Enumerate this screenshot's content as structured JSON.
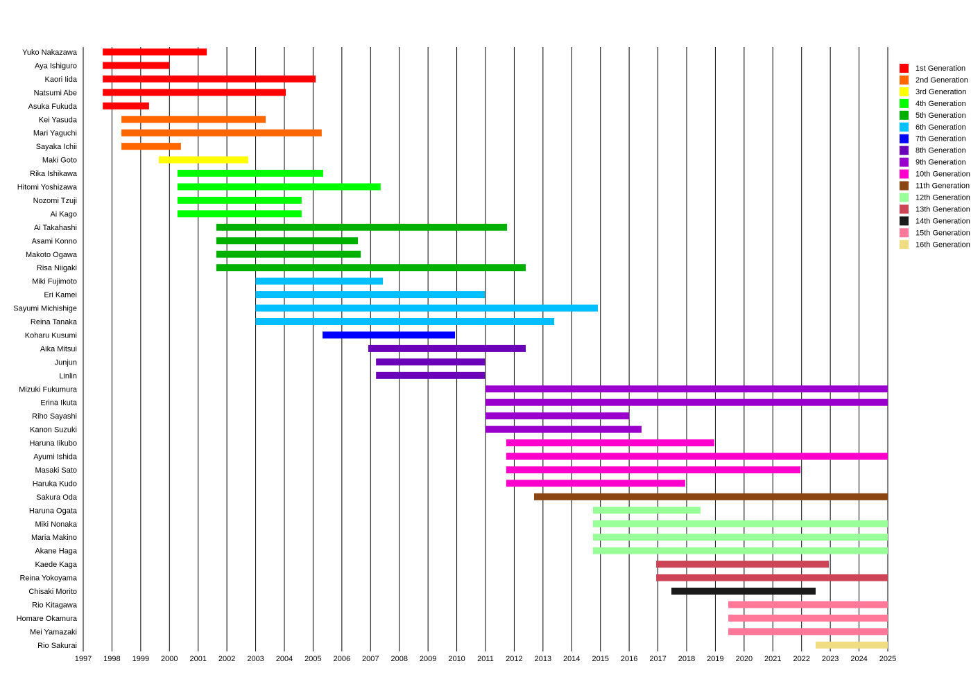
{
  "chart_data": {
    "type": "timeline",
    "title": "",
    "xlabel": "",
    "ylabel": "",
    "xlim": [
      1997,
      2025
    ],
    "x_ticks": [
      1997,
      1998,
      1999,
      2000,
      2001,
      2002,
      2003,
      2004,
      2005,
      2006,
      2007,
      2008,
      2009,
      2010,
      2011,
      2012,
      2013,
      2014,
      2015,
      2016,
      2017,
      2018,
      2019,
      2020,
      2021,
      2022,
      2023,
      2024,
      2025
    ],
    "grid": "vertical",
    "legend_position": "right",
    "generations": [
      {
        "name": "1st Generation",
        "color": "#ff0000"
      },
      {
        "name": "2nd Generation",
        "color": "#ff6600"
      },
      {
        "name": "3rd Generation",
        "color": "#ffff00"
      },
      {
        "name": "4th Generation",
        "color": "#00ff00"
      },
      {
        "name": "5th Generation",
        "color": "#00b000"
      },
      {
        "name": "6th Generation",
        "color": "#00bfff"
      },
      {
        "name": "7th Generation",
        "color": "#0000ff"
      },
      {
        "name": "8th Generation",
        "color": "#6a00b8"
      },
      {
        "name": "9th Generation",
        "color": "#9900cc"
      },
      {
        "name": "10th Generation",
        "color": "#ff00cc"
      },
      {
        "name": "11th Generation",
        "color": "#8b4513"
      },
      {
        "name": "12th Generation",
        "color": "#99ff99"
      },
      {
        "name": "13th Generation",
        "color": "#cc4455"
      },
      {
        "name": "14th Generation",
        "color": "#1a1a1a"
      },
      {
        "name": "15th Generation",
        "color": "#ff7799"
      },
      {
        "name": "16th Generation",
        "color": "#f0dc82"
      }
    ],
    "members": [
      {
        "name": "Yuko Nakazawa",
        "gen": 0,
        "start": 1997.68,
        "end": 2001.3
      },
      {
        "name": "Aya Ishiguro",
        "gen": 0,
        "start": 1997.68,
        "end": 2000.0
      },
      {
        "name": "Kaori Iida",
        "gen": 0,
        "start": 1997.68,
        "end": 2005.09
      },
      {
        "name": "Natsumi Abe",
        "gen": 0,
        "start": 1997.68,
        "end": 2004.05
      },
      {
        "name": "Asuka Fukuda",
        "gen": 0,
        "start": 1997.68,
        "end": 1999.29
      },
      {
        "name": "Kei Yasuda",
        "gen": 1,
        "start": 1998.33,
        "end": 2003.35
      },
      {
        "name": "Mari Yaguchi",
        "gen": 1,
        "start": 1998.33,
        "end": 2005.3
      },
      {
        "name": "Sayaka Ichii",
        "gen": 1,
        "start": 1998.33,
        "end": 2000.4
      },
      {
        "name": "Maki Goto",
        "gen": 2,
        "start": 1999.63,
        "end": 2002.74
      },
      {
        "name": "Rika Ishikawa",
        "gen": 3,
        "start": 2000.28,
        "end": 2005.35
      },
      {
        "name": "Hitomi Yoshizawa",
        "gen": 3,
        "start": 2000.28,
        "end": 2007.35
      },
      {
        "name": "Nozomi Tzuji",
        "gen": 3,
        "start": 2000.28,
        "end": 2004.6
      },
      {
        "name": "Ai Kago",
        "gen": 3,
        "start": 2000.28,
        "end": 2004.6
      },
      {
        "name": "Ai Takahashi",
        "gen": 4,
        "start": 2001.63,
        "end": 2011.75
      },
      {
        "name": "Asami Konno",
        "gen": 4,
        "start": 2001.63,
        "end": 2006.56
      },
      {
        "name": "Makoto Ogawa",
        "gen": 4,
        "start": 2001.63,
        "end": 2006.66
      },
      {
        "name": "Risa Niigaki",
        "gen": 4,
        "start": 2001.63,
        "end": 2012.4
      },
      {
        "name": "Miki Fujimoto",
        "gen": 5,
        "start": 2003.0,
        "end": 2007.43
      },
      {
        "name": "Eri Kamei",
        "gen": 5,
        "start": 2003.0,
        "end": 2010.98
      },
      {
        "name": "Sayumi Michishige",
        "gen": 5,
        "start": 2003.0,
        "end": 2014.91
      },
      {
        "name": "Reina Tanaka",
        "gen": 5,
        "start": 2003.0,
        "end": 2013.39
      },
      {
        "name": "Koharu Kusumi",
        "gen": 6,
        "start": 2005.33,
        "end": 2009.94
      },
      {
        "name": "Aika Mitsui",
        "gen": 7,
        "start": 2006.92,
        "end": 2012.4
      },
      {
        "name": "Junjun",
        "gen": 7,
        "start": 2007.19,
        "end": 2010.98
      },
      {
        "name": "Linlin",
        "gen": 7,
        "start": 2007.19,
        "end": 2010.98
      },
      {
        "name": "Mizuki Fukumura",
        "gen": 8,
        "start": 2011.0,
        "end": 2025
      },
      {
        "name": "Erina Ikuta",
        "gen": 8,
        "start": 2011.0,
        "end": 2025
      },
      {
        "name": "Riho Sayashi",
        "gen": 8,
        "start": 2011.0,
        "end": 2016.0
      },
      {
        "name": "Kanon Suzuki",
        "gen": 8,
        "start": 2011.0,
        "end": 2016.43
      },
      {
        "name": "Haruna Iikubo",
        "gen": 9,
        "start": 2011.72,
        "end": 2018.96
      },
      {
        "name": "Ayumi Ishida",
        "gen": 9,
        "start": 2011.72,
        "end": 2025
      },
      {
        "name": "Masaki Sato",
        "gen": 9,
        "start": 2011.72,
        "end": 2021.96
      },
      {
        "name": "Haruka Kudo",
        "gen": 9,
        "start": 2011.72,
        "end": 2017.95
      },
      {
        "name": "Sakura Oda",
        "gen": 10,
        "start": 2012.69,
        "end": 2025
      },
      {
        "name": "Haruna Ogata",
        "gen": 11,
        "start": 2014.74,
        "end": 2018.48
      },
      {
        "name": "Miki Nonaka",
        "gen": 11,
        "start": 2014.74,
        "end": 2025
      },
      {
        "name": "Maria Makino",
        "gen": 11,
        "start": 2014.74,
        "end": 2025
      },
      {
        "name": "Akane Haga",
        "gen": 11,
        "start": 2014.74,
        "end": 2025
      },
      {
        "name": "Kaede Kaga",
        "gen": 12,
        "start": 2016.94,
        "end": 2022.95
      },
      {
        "name": "Reina Yokoyama",
        "gen": 12,
        "start": 2016.94,
        "end": 2025
      },
      {
        "name": "Chisaki Morito",
        "gen": 13,
        "start": 2017.47,
        "end": 2022.49
      },
      {
        "name": "Rio Kitagawa",
        "gen": 14,
        "start": 2019.45,
        "end": 2025
      },
      {
        "name": "Homare Okamura",
        "gen": 14,
        "start": 2019.45,
        "end": 2025
      },
      {
        "name": "Mei Yamazaki",
        "gen": 14,
        "start": 2019.45,
        "end": 2025
      },
      {
        "name": "Rio Sakurai",
        "gen": 15,
        "start": 2022.49,
        "end": 2025
      }
    ]
  }
}
